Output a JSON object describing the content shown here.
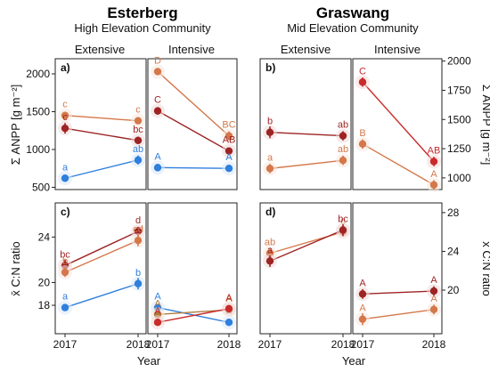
{
  "header": {
    "left_site": "Esterberg",
    "left_sub": "High Elevation Community",
    "right_site": "Graswang",
    "right_sub": "Mid Elevation Community"
  },
  "strips": {
    "extensive": "Extensive",
    "intensive": "Intensive"
  },
  "axes": {
    "xlabel": "Year",
    "ylabel_top": "Σ ANPP [g m⁻²]",
    "ylabel_bottom": "x̄ C:N ratio",
    "x_ticks": [
      "2017",
      "2018"
    ],
    "top_left_yticks": [
      "500",
      "1000",
      "1500",
      "2000"
    ],
    "top_right_yticks": [
      "1000",
      "1250",
      "1500",
      "1750",
      "2000"
    ],
    "bottom_left_yticks": [
      "18",
      "20",
      "24"
    ],
    "bottom_right_yticks": [
      "20",
      "24",
      "28"
    ]
  },
  "panel_labels": [
    "a)",
    "b)",
    "c)",
    "d)"
  ],
  "colors": {
    "blue": "#2f7fdc",
    "orange": "#d4784b",
    "darkred": "#9e2424",
    "red": "#c92b2b",
    "olive": "#b07a3e"
  },
  "chart_data": [
    {
      "id": "a",
      "type": "line",
      "site": "Esterberg",
      "variable": "ANPP",
      "ylim": [
        470,
        2200
      ],
      "facets": [
        {
          "management": "Extensive",
          "x": [
            "2017",
            "2018"
          ],
          "series": [
            {
              "color": "orange",
              "values": [
                1450,
                1380
              ],
              "labels": [
                "c",
                "c"
              ],
              "errors": [
                40,
                30
              ]
            },
            {
              "color": "darkred",
              "values": [
                1280,
                1120
              ],
              "labels": [
                "c",
                "bc"
              ],
              "errors": [
                70,
                50
              ]
            },
            {
              "color": "blue",
              "values": [
                620,
                860
              ],
              "labels": [
                "a",
                "ab"
              ],
              "errors": [
                40,
                60
              ]
            }
          ]
        },
        {
          "management": "Intensive",
          "x": [
            "2017",
            "2018"
          ],
          "series": [
            {
              "color": "orange",
              "values": [
                2030,
                1180
              ],
              "labels": [
                "D",
                "BC"
              ],
              "errors": [
                40,
                60
              ]
            },
            {
              "color": "darkred",
              "values": [
                1510,
                980
              ],
              "labels": [
                "C",
                "AB"
              ],
              "errors": [
                50,
                30
              ]
            },
            {
              "color": "blue",
              "values": [
                760,
                750
              ],
              "labels": [
                "A",
                "A"
              ],
              "errors": [
                50,
                40
              ]
            }
          ]
        }
      ]
    },
    {
      "id": "b",
      "type": "line",
      "site": "Graswang",
      "variable": "ANPP",
      "ylim": [
        900,
        2020
      ],
      "facets": [
        {
          "management": "Extensive",
          "x": [
            "2017",
            "2018"
          ],
          "series": [
            {
              "color": "darkred",
              "values": [
                1390,
                1360
              ],
              "labels": [
                "b",
                "ab"
              ],
              "errors": [
                50,
                40
              ]
            },
            {
              "color": "orange",
              "values": [
                1080,
                1150
              ],
              "labels": [
                "a",
                "ab"
              ],
              "errors": [
                40,
                40
              ]
            }
          ]
        },
        {
          "management": "Intensive",
          "x": [
            "2017",
            "2018"
          ],
          "series": [
            {
              "color": "red",
              "values": [
                1820,
                1140
              ],
              "labels": [
                "C",
                "AB"
              ],
              "errors": [
                40,
                40
              ]
            },
            {
              "color": "orange",
              "values": [
                1290,
                940
              ],
              "labels": [
                "B",
                "A"
              ],
              "errors": [
                40,
                40
              ]
            }
          ]
        }
      ]
    },
    {
      "id": "c",
      "type": "line",
      "site": "Esterberg",
      "variable": "C:N ratio",
      "ylim": [
        15.5,
        27
      ],
      "facets": [
        {
          "management": "Extensive",
          "x": [
            "2017",
            "2018"
          ],
          "series": [
            {
              "color": "darkred",
              "values": [
                21.5,
                24.5
              ],
              "labels": [
                "bc",
                "d"
              ],
              "errors": [
                0.5,
                0.4
              ]
            },
            {
              "color": "orange",
              "values": [
                20.9,
                23.7
              ],
              "labels": [
                "b",
                "cd"
              ],
              "errors": [
                0.4,
                0.5
              ]
            },
            {
              "color": "blue",
              "values": [
                17.8,
                19.9
              ],
              "labels": [
                "a",
                "b"
              ],
              "errors": [
                0.3,
                0.5
              ]
            }
          ]
        },
        {
          "management": "Intensive",
          "x": [
            "2017",
            "2018"
          ],
          "series": [
            {
              "color": "blue",
              "values": [
                17.8,
                16.5
              ],
              "labels": [
                "A",
                "A"
              ],
              "errors": [
                0.3,
                0.3
              ]
            },
            {
              "color": "olive",
              "values": [
                17.2,
                17.6
              ],
              "labels": [
                "A",
                "A"
              ],
              "errors": [
                0.3,
                0.3
              ]
            },
            {
              "color": "red",
              "values": [
                16.5,
                17.7
              ],
              "labels": [
                "A",
                "A"
              ],
              "errors": [
                0.3,
                0.3
              ]
            }
          ]
        }
      ]
    },
    {
      "id": "d",
      "type": "line",
      "site": "Graswang",
      "variable": "C:N ratio",
      "ylim": [
        15.5,
        29
      ],
      "facets": [
        {
          "management": "Extensive",
          "x": [
            "2017",
            "2018"
          ],
          "series": [
            {
              "color": "orange",
              "values": [
                23.8,
                26.0
              ],
              "labels": [
                "ab",
                "c"
              ],
              "errors": [
                0.5,
                0.5
              ]
            },
            {
              "color": "darkred",
              "values": [
                23.0,
                26.2
              ],
              "labels": [
                "a",
                "bc"
              ],
              "errors": [
                0.6,
                0.6
              ]
            }
          ]
        },
        {
          "management": "Intensive",
          "x": [
            "2017",
            "2018"
          ],
          "series": [
            {
              "color": "darkred",
              "values": [
                19.6,
                19.9
              ],
              "labels": [
                "A",
                "A"
              ],
              "errors": [
                0.5,
                0.5
              ]
            },
            {
              "color": "orange",
              "values": [
                17.0,
                18.0
              ],
              "labels": [
                "A",
                "A"
              ],
              "errors": [
                0.6,
                0.5
              ]
            }
          ]
        }
      ]
    }
  ]
}
